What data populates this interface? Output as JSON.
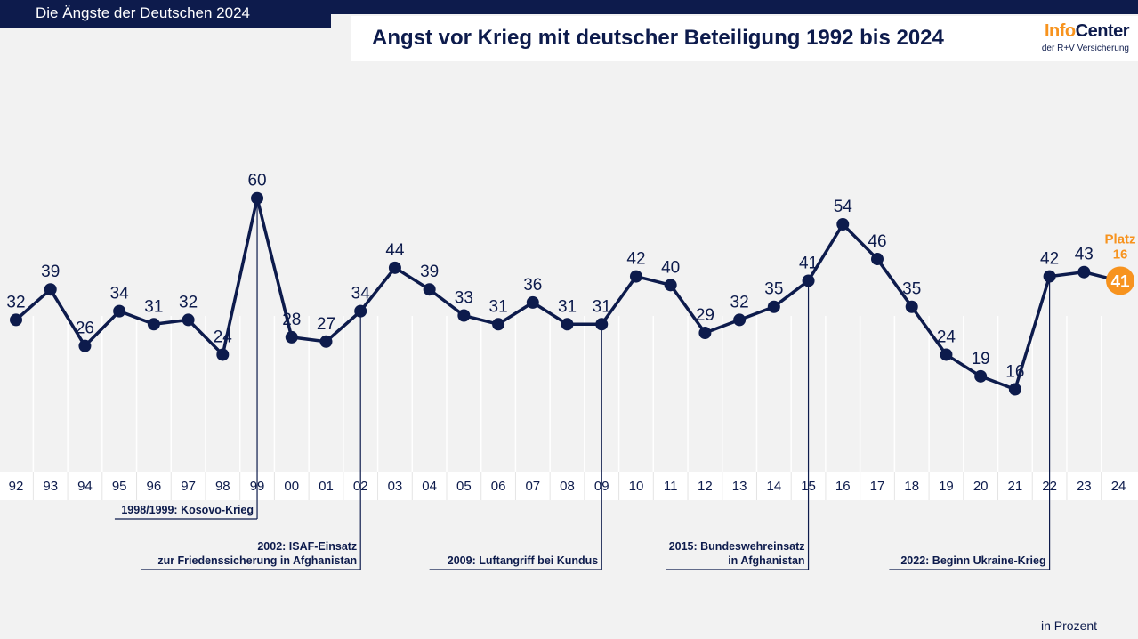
{
  "header": {
    "series_title": "Die Ängste der Deutschen 2024",
    "chart_title": "Angst vor Krieg mit deutscher Beteiligung 1992 bis 2024",
    "logo_info": "Info",
    "logo_center": "Center",
    "logo_sub": "der R+V Versicherung"
  },
  "colors": {
    "navy": "#0d1b4c",
    "highlight": "#f7931e",
    "background": "#f2f2f2"
  },
  "chart_data": {
    "type": "line",
    "title": "Angst vor Krieg mit deutscher Beteiligung 1992 bis 2024",
    "unit": "in Prozent",
    "ylim": [
      0,
      70
    ],
    "grid": false,
    "categories": [
      "92",
      "93",
      "94",
      "95",
      "96",
      "97",
      "98",
      "99",
      "00",
      "01",
      "02",
      "03",
      "04",
      "05",
      "06",
      "07",
      "08",
      "09",
      "10",
      "11",
      "12",
      "13",
      "14",
      "15",
      "16",
      "17",
      "18",
      "19",
      "20",
      "21",
      "22",
      "23",
      "24"
    ],
    "values": [
      32,
      39,
      26,
      34,
      31,
      32,
      24,
      60,
      28,
      27,
      34,
      44,
      39,
      33,
      31,
      36,
      31,
      31,
      42,
      40,
      29,
      32,
      35,
      41,
      54,
      46,
      35,
      24,
      19,
      16,
      42,
      43,
      41
    ],
    "highlight": {
      "category": "24",
      "value": 41,
      "rank_label": "Platz",
      "rank_value": "16"
    },
    "annotations": [
      {
        "category": "99",
        "lines": [
          "1998/1999: Kosovo-Krieg"
        ]
      },
      {
        "category": "02",
        "lines": [
          "2002: ISAF-Einsatz",
          "zur Friedenssicherung in Afghanistan"
        ]
      },
      {
        "category": "09",
        "lines": [
          "2009: Luftangriff bei Kundus"
        ]
      },
      {
        "category": "15",
        "lines": [
          "2015: Bundeswehreinsatz",
          "in Afghanistan"
        ]
      },
      {
        "category": "22",
        "lines": [
          "2022: Beginn Ukraine-Krieg"
        ]
      }
    ]
  }
}
